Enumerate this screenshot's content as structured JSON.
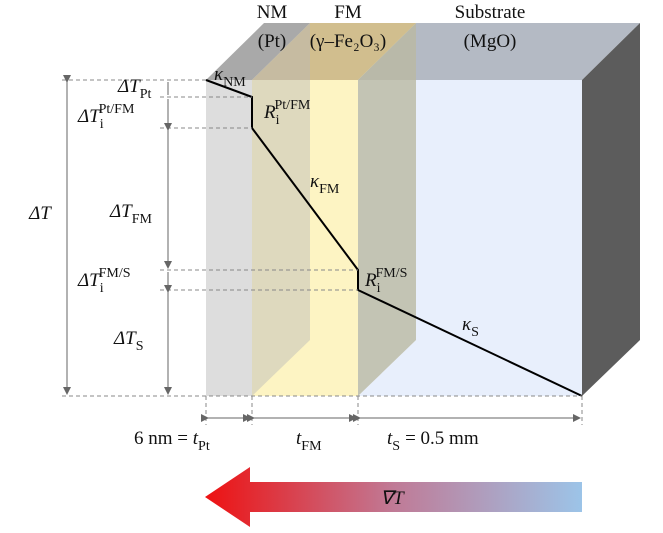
{
  "layers": [
    {
      "name": "NM",
      "material": "(Pt)"
    },
    {
      "name": "FM",
      "material": "(γ–Fe₂O₃)"
    },
    {
      "name": "Substrate",
      "material": "(MgO)"
    }
  ],
  "conductivities": [
    {
      "symbol": "κ",
      "sub": "NM"
    },
    {
      "symbol": "κ",
      "sub": "FM"
    },
    {
      "symbol": "κ",
      "sub": "S"
    }
  ],
  "interface_resistances": [
    {
      "symbol": "R",
      "sub": "i",
      "sup": "Pt/FM"
    },
    {
      "symbol": "R",
      "sub": "i",
      "sup": "FM/S"
    }
  ],
  "temperature_drops": {
    "total": {
      "symbol": "ΔT"
    },
    "parts": [
      {
        "symbol": "ΔT",
        "sub": "Pt"
      },
      {
        "symbol": "ΔT",
        "sub": "i",
        "sup": "Pt/FM"
      },
      {
        "symbol": "ΔT",
        "sub": "FM"
      },
      {
        "symbol": "ΔT",
        "sub": "i",
        "sup": "FM/S"
      },
      {
        "symbol": "ΔT",
        "sub": "S"
      }
    ]
  },
  "thicknesses": [
    {
      "prefix": "6 nm =",
      "symbol": "t",
      "sub": "Pt"
    },
    {
      "symbol": "t",
      "sub": "FM"
    },
    {
      "symbol": "t",
      "sub": "S",
      "suffix": "= 0.5 mm"
    }
  ],
  "gradient_label": {
    "symbol": "∇T"
  }
}
